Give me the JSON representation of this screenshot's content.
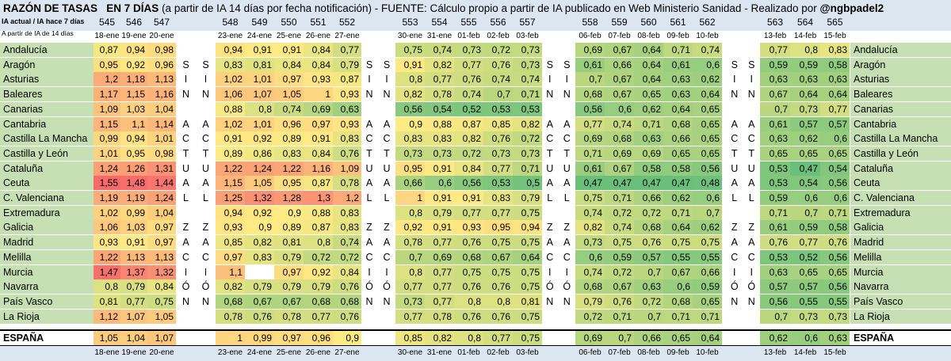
{
  "header": {
    "title_bold": "RAZÓN DE TASAS",
    "title_rest_bold": "EN 7 DÍAS",
    "title_rest": " (a partir de IA 14 días por fecha notificación) - FUENTE: Cálculo propio a partir de IA publicado en Web Ministerio Sanidad - Realizado por ",
    "author": "@ngbpadel2",
    "subtitle1": "IA actual / IA hace 7 días",
    "subtitle2": "A partir de IA de 14 días"
  },
  "groups": [
    {
      "cols": [
        {
          "num": "545",
          "date": "18-ene"
        },
        {
          "num": "546",
          "date": "19-ene"
        },
        {
          "num": "547",
          "date": "20-ene"
        }
      ]
    },
    {
      "cols": [
        {
          "num": "548",
          "date": "23-ene"
        },
        {
          "num": "549",
          "date": "24-ene"
        },
        {
          "num": "550",
          "date": "25-ene"
        },
        {
          "num": "551",
          "date": "26-ene"
        },
        {
          "num": "552",
          "date": "27-ene"
        }
      ]
    },
    {
      "cols": [
        {
          "num": "553",
          "date": "30-ene"
        },
        {
          "num": "554",
          "date": "31-ene"
        },
        {
          "num": "555",
          "date": "01-feb"
        },
        {
          "num": "556",
          "date": "02-feb"
        },
        {
          "num": "557",
          "date": "03-feb"
        }
      ]
    },
    {
      "cols": [
        {
          "num": "558",
          "date": "06-feb"
        },
        {
          "num": "559",
          "date": "07-feb"
        },
        {
          "num": "560",
          "date": "08-feb"
        },
        {
          "num": "561",
          "date": "09-feb"
        },
        {
          "num": "562",
          "date": "10-feb"
        }
      ]
    },
    {
      "cols": [
        {
          "num": "563",
          "date": "13-feb"
        },
        {
          "num": "564",
          "date": "14-feb"
        },
        {
          "num": "565",
          "date": "15-feb"
        }
      ]
    }
  ],
  "rows": [
    {
      "name": "Andalucía",
      "letter": "",
      "values": [
        "0,87",
        "0,94",
        "0,98",
        "0,94",
        "0,91",
        "0,91",
        "0,84",
        "0,77",
        "0,75",
        "0,74",
        "0,73",
        "0,72",
        "0,73",
        "0,69",
        "0,67",
        "0,64",
        "0,71",
        "0,74",
        "0,77",
        "0,8",
        "0,83"
      ]
    },
    {
      "name": "Aragón",
      "letter": "S",
      "values": [
        "0,95",
        "0,92",
        "0,96",
        "0,83",
        "0,81",
        "0,84",
        "0,84",
        "0,79",
        "0,91",
        "0,82",
        "0,77",
        "0,76",
        "0,73",
        "0,61",
        "0,66",
        "0,64",
        "0,61",
        "0,6",
        "0,59",
        "0,59",
        "0,58"
      ]
    },
    {
      "name": "Asturias",
      "letter": "I",
      "values": [
        "1,2",
        "1,18",
        "1,13",
        "1,02",
        "1,01",
        "0,97",
        "0,93",
        "0,87",
        "0,8",
        "0,77",
        "0,76",
        "0,74",
        "0,74",
        "0,7",
        "0,67",
        "0,64",
        "0,63",
        "0,62",
        "0,63",
        "0,63",
        "0,63"
      ]
    },
    {
      "name": "Baleares",
      "letter": "N",
      "values": [
        "1,17",
        "1,15",
        "1,16",
        "1,06",
        "1,07",
        "1,05",
        "1",
        "0,93",
        "0,82",
        "0,78",
        "0,74",
        "0,7",
        "0,71",
        "0,68",
        "0,67",
        "0,65",
        "0,63",
        "0,64",
        "0,67",
        "0,64",
        "0,64"
      ]
    },
    {
      "name": "Canarias",
      "letter": "",
      "values": [
        "1,09",
        "1,03",
        "1,04",
        "0,88",
        "0,8",
        "0,74",
        "0,69",
        "0,63",
        "0,56",
        "0,54",
        "0,52",
        "0,53",
        "0,53",
        "0,56",
        "0,6",
        "0,62",
        "0,64",
        "0,65",
        "0,7",
        "0,73",
        "0,77"
      ]
    },
    {
      "name": "Cantabria",
      "letter": "A",
      "values": [
        "1,15",
        "1,1",
        "1,14",
        "1,02",
        "1,01",
        "0,96",
        "0,97",
        "0,93",
        "0,9",
        "0,88",
        "0,87",
        "0,85",
        "0,82",
        "0,77",
        "0,74",
        "0,71",
        "0,68",
        "0,65",
        "0,61",
        "0,57",
        "0,57"
      ]
    },
    {
      "name": "Castilla La Mancha",
      "letter": "C",
      "values": [
        "0,99",
        "0,94",
        "1,01",
        "0,91",
        "0,92",
        "0,89",
        "0,91",
        "0,83",
        "0,83",
        "0,83",
        "0,82",
        "0,76",
        "0,72",
        "0,69",
        "0,68",
        "0,63",
        "0,66",
        "0,65",
        "0,63",
        "0,62",
        "0,6"
      ]
    },
    {
      "name": "Castilla y León",
      "letter": "T",
      "values": [
        "1,01",
        "0,95",
        "0,98",
        "0,89",
        "0,86",
        "0,83",
        "0,84",
        "0,76",
        "0,73",
        "0,73",
        "0,72",
        "0,73",
        "0,73",
        "0,71",
        "0,69",
        "0,69",
        "0,65",
        "0,65",
        "0,65",
        "0,65",
        "0,65"
      ]
    },
    {
      "name": "Cataluña",
      "letter": "U",
      "values": [
        "1,24",
        "1,26",
        "1,31",
        "1,22",
        "1,24",
        "1,22",
        "1,16",
        "1,09",
        "0,95",
        "0,91",
        "0,84",
        "0,77",
        "0,71",
        "0,61",
        "0,67",
        "0,58",
        "0,58",
        "0,56",
        "0,53",
        "0,47",
        "0,54"
      ]
    },
    {
      "name": "Ceuta",
      "letter": "A",
      "values": [
        "1,55",
        "1,48",
        "1,44",
        "1,15",
        "1,05",
        "0,95",
        "0,87",
        "0,78",
        "0,66",
        "0,6",
        "0,56",
        "0,53",
        "0,5",
        "0,47",
        "0,47",
        "0,47",
        "0,47",
        "0,48",
        "0,53",
        "0,54",
        "0,56"
      ]
    },
    {
      "name": "C. Valenciana",
      "letter": "L",
      "values": [
        "1,19",
        "1,19",
        "1,24",
        "1,25",
        "1,32",
        "1,28",
        "1,3",
        "1,2",
        "1",
        "0,91",
        "0,91",
        "0,83",
        "0,79",
        "0,75",
        "0,71",
        "0,66",
        "0,62",
        "0,6",
        "0,59",
        "0,6",
        "0,6"
      ]
    },
    {
      "name": "Extremadura",
      "letter": "",
      "values": [
        "1,02",
        "0,99",
        "1,04",
        "0,94",
        "0,92",
        "0,9",
        "0,88",
        "0,83",
        "0,8",
        "0,79",
        "0,77",
        "0,77",
        "0,75",
        "0,74",
        "0,72",
        "0,72",
        "0,71",
        "0,7",
        "0,71",
        "0,7",
        "0,71"
      ]
    },
    {
      "name": "Galicia",
      "letter": "Z",
      "values": [
        "1,06",
        "1,03",
        "0,97",
        "0,93",
        "0,9",
        "0,89",
        "0,87",
        "0,83",
        "0,92",
        "0,91",
        "0,93",
        "0,95",
        "0,94",
        "0,82",
        "0,74",
        "0,68",
        "0,64",
        "0,62",
        "0,61",
        "0,59",
        "0,58"
      ]
    },
    {
      "name": "Madrid",
      "letter": "A",
      "values": [
        "0,93",
        "0,91",
        "0,97",
        "0,85",
        "0,82",
        "0,81",
        "0,8",
        "0,74",
        "0,78",
        "0,77",
        "0,76",
        "0,75",
        "0,75",
        "0,73",
        "0,75",
        "0,76",
        "0,75",
        "0,75",
        "0,76",
        "0,77",
        "0,76"
      ]
    },
    {
      "name": "Melilla",
      "letter": "C",
      "values": [
        "1,22",
        "1,13",
        "1,13",
        "0,97",
        "0,83",
        "0,79",
        "0,72",
        "0,72",
        "0,7",
        "0,69",
        "0,68",
        "0,67",
        "0,64",
        "0,6",
        "0,59",
        "0,57",
        "0,55",
        "0,55",
        "0,53",
        "0,52",
        "0,56"
      ]
    },
    {
      "name": "Murcia",
      "letter": "I",
      "values": [
        "1,47",
        "1,37",
        "1,32",
        "1,1",
        "",
        "0,97",
        "0,92",
        "0,84",
        "0,8",
        "0,77",
        "0,75",
        "0,75",
        "0,75",
        "0,74",
        "0,72",
        "0,7",
        "0,67",
        "0,66",
        "0,63",
        "0,65",
        "0,65"
      ]
    },
    {
      "name": "Navarra",
      "letter": "Ó",
      "values": [
        "0,8",
        "0,79",
        "0,84",
        "0,82",
        "0,79",
        "0,79",
        "0,79",
        "0,76",
        "0,77",
        "0,77",
        "0,76",
        "0,76",
        "0,75",
        "0,68",
        "0,67",
        "0,63",
        "0,6",
        "0,59",
        "0,57",
        "0,57",
        "0,56"
      ]
    },
    {
      "name": "País Vasco",
      "letter": "N",
      "values": [
        "0,81",
        "0,77",
        "0,75",
        "0,68",
        "0,67",
        "0,67",
        "0,68",
        "0,68",
        "0,73",
        "0,77",
        "0,8",
        "0,8",
        "0,81",
        "0,79",
        "0,76",
        "0,72",
        "0,68",
        "0,65",
        "0,56",
        "0,55",
        "0,55"
      ]
    },
    {
      "name": "La Rioja",
      "letter": "",
      "values": [
        "1,12",
        "1,07",
        "1,05",
        "0,78",
        "0,76",
        "0,78",
        "0,77",
        "0,76",
        "0,77",
        "0,78",
        "0,76",
        "0,76",
        "0,75",
        "0,72",
        "0,71",
        "0,7",
        "0,71",
        "0,71",
        "0,7",
        "0,73",
        "0,73"
      ]
    }
  ],
  "spain": {
    "name": "ESPAÑA",
    "values": [
      "1,05",
      "1,04",
      "1,07",
      "1",
      "0,99",
      "0,97",
      "0,96",
      "0,9",
      "0,85",
      "0,82",
      "0,8",
      "0,77",
      "0,75",
      "0,69",
      "0,7",
      "0,66",
      "0,65",
      "0,64",
      "0,62",
      "0,6",
      "0,63"
    ]
  },
  "colors": {
    "red": "#f8696b",
    "yellow": "#ffeb84",
    "green": "#63be7b",
    "header_bg": "#dce6f1",
    "blank": "#ffffff"
  }
}
